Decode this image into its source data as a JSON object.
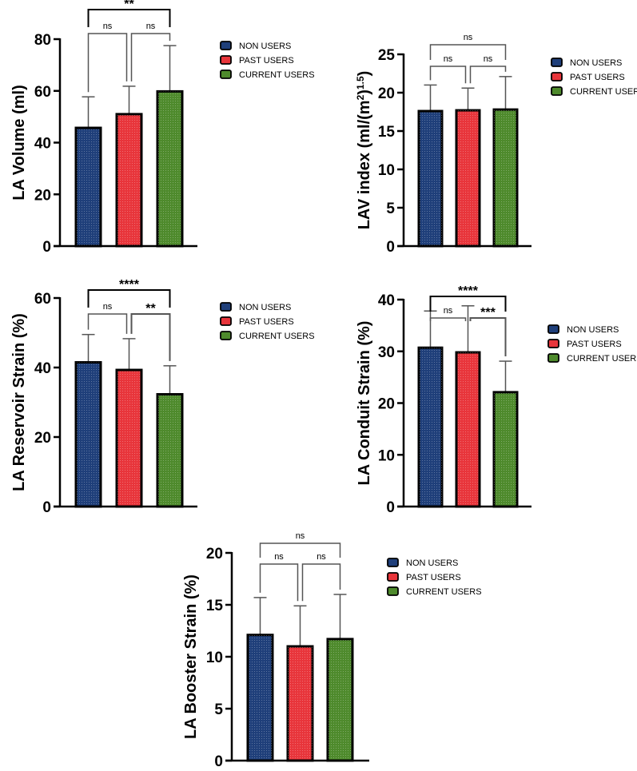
{
  "colors": {
    "non_users": "#1f3f7a",
    "past_users": "#e8353b",
    "current_users": "#4e8a2c",
    "axis": "#000000",
    "bracket": "#555555"
  },
  "chart_data": [
    {
      "type": "bar",
      "ylabel": "LA Volume (ml)",
      "categories": [
        "NON USERS",
        "PAST USERS",
        "CURRENT USERS"
      ],
      "values": [
        45.7,
        51,
        59.8
      ],
      "error_upper": [
        57.7,
        61.8,
        77.5
      ],
      "ylim": [
        0,
        80
      ],
      "yticks": [
        0,
        20,
        40,
        60,
        80
      ],
      "legend": [
        "NON USERS",
        "PAST USERS",
        "CURRENT USERS"
      ],
      "legend_position": "right",
      "significance": [
        {
          "pair": [
            0,
            1
          ],
          "label": "ns"
        },
        {
          "pair": [
            1,
            2
          ],
          "label": "ns"
        },
        {
          "pair": [
            0,
            2
          ],
          "label": "**"
        }
      ]
    },
    {
      "type": "bar",
      "ylabel": "LAV index (ml/(m",
      "ylabel_sup": "2",
      "ylabel_mid": ")",
      "ylabel_sup2": "1.5",
      "ylabel_end": ")",
      "categories": [
        "NON USERS",
        "PAST USERS",
        "CURRENT USERS"
      ],
      "values": [
        17.6,
        17.7,
        17.8
      ],
      "error_upper": [
        21,
        20.6,
        22.1
      ],
      "ylim": [
        0,
        25
      ],
      "yticks": [
        0,
        5,
        10,
        15,
        20,
        25
      ],
      "legend": [
        "NON USERS",
        "PAST USERS",
        "CURRENT USERS"
      ],
      "legend_position": "right",
      "significance": [
        {
          "pair": [
            0,
            1
          ],
          "label": "ns"
        },
        {
          "pair": [
            1,
            2
          ],
          "label": "ns"
        },
        {
          "pair": [
            0,
            2
          ],
          "label": "ns"
        }
      ]
    },
    {
      "type": "bar",
      "ylabel": "LA Reservoir Strain (%)",
      "categories": [
        "NON USERS",
        "PAST USERS",
        "CURRENT USERS"
      ],
      "values": [
        41.5,
        39.3,
        32.3
      ],
      "error_upper": [
        49.5,
        48.3,
        40.5
      ],
      "ylim": [
        0,
        60
      ],
      "yticks": [
        0,
        20,
        40,
        60
      ],
      "legend": [
        "NON USERS",
        "PAST USERS",
        "CURRENT USERS"
      ],
      "legend_position": "right",
      "significance": [
        {
          "pair": [
            0,
            1
          ],
          "label": "ns"
        },
        {
          "pair": [
            1,
            2
          ],
          "label": "**"
        },
        {
          "pair": [
            0,
            2
          ],
          "label": "****"
        }
      ]
    },
    {
      "type": "bar",
      "ylabel": "LA Conduit Strain (%)",
      "categories": [
        "NON USERS",
        "PAST USERS",
        "CURRENT USERS"
      ],
      "values": [
        30.7,
        29.8,
        22.1
      ],
      "error_upper": [
        37.8,
        38.8,
        28.1
      ],
      "ylim": [
        0,
        40
      ],
      "yticks": [
        0,
        10,
        20,
        30,
        40
      ],
      "legend": [
        "NON USERS",
        "PAST USERS",
        "CURRENT USERS"
      ],
      "legend_position": "right",
      "significance": [
        {
          "pair": [
            0,
            1
          ],
          "label": "ns"
        },
        {
          "pair": [
            1,
            2
          ],
          "label": "***"
        },
        {
          "pair": [
            0,
            2
          ],
          "label": "****"
        }
      ]
    },
    {
      "type": "bar",
      "ylabel": "LA Booster Strain (%)",
      "categories": [
        "NON USERS",
        "PAST USERS",
        "CURRENT USERS"
      ],
      "values": [
        12.1,
        11,
        11.7
      ],
      "error_upper": [
        15.7,
        14.9,
        16
      ],
      "ylim": [
        0,
        20
      ],
      "yticks": [
        0,
        5,
        10,
        15,
        20
      ],
      "legend": [
        "NON USERS",
        "PAST USERS",
        "CURRENT USERS"
      ],
      "legend_position": "right",
      "significance": [
        {
          "pair": [
            0,
            1
          ],
          "label": "ns"
        },
        {
          "pair": [
            1,
            2
          ],
          "label": "ns"
        },
        {
          "pair": [
            0,
            2
          ],
          "label": "ns"
        }
      ]
    }
  ]
}
